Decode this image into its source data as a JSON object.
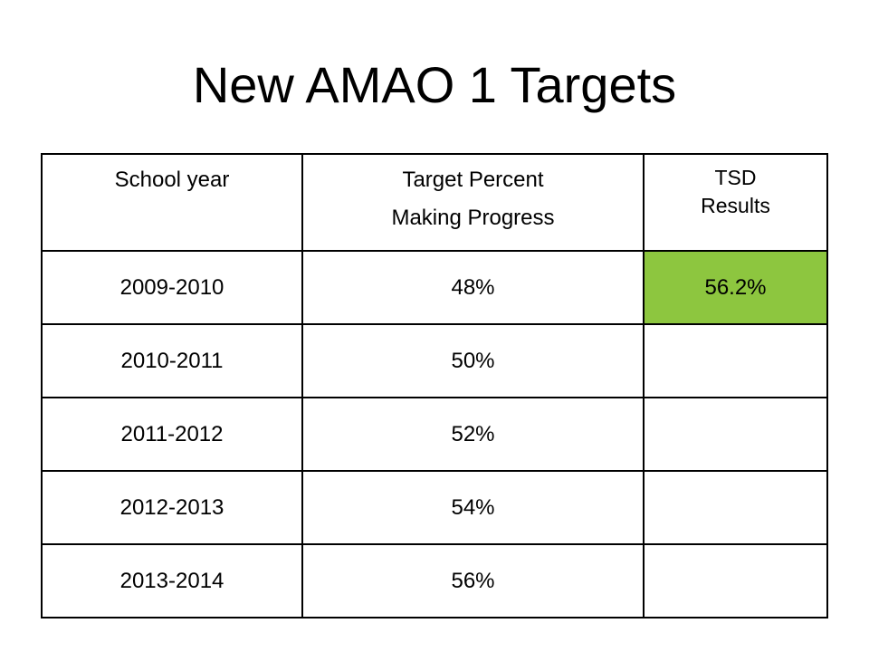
{
  "title": "New AMAO 1 Targets",
  "colors": {
    "highlight": "#8dc63f"
  },
  "table": {
    "headers": {
      "year": "School year",
      "target_line1": "Target Percent",
      "target_line2": "Making Progress",
      "results_line1": "TSD",
      "results_line2": "Results"
    },
    "rows": [
      {
        "year": "2009-2010",
        "target": "48%",
        "result": "56.2%"
      },
      {
        "year": "2010-2011",
        "target": "50%",
        "result": ""
      },
      {
        "year": "2011-2012",
        "target": "52%",
        "result": ""
      },
      {
        "year": "2012-2013",
        "target": "54%",
        "result": ""
      },
      {
        "year": "2013-2014",
        "target": "56%",
        "result": ""
      }
    ]
  }
}
